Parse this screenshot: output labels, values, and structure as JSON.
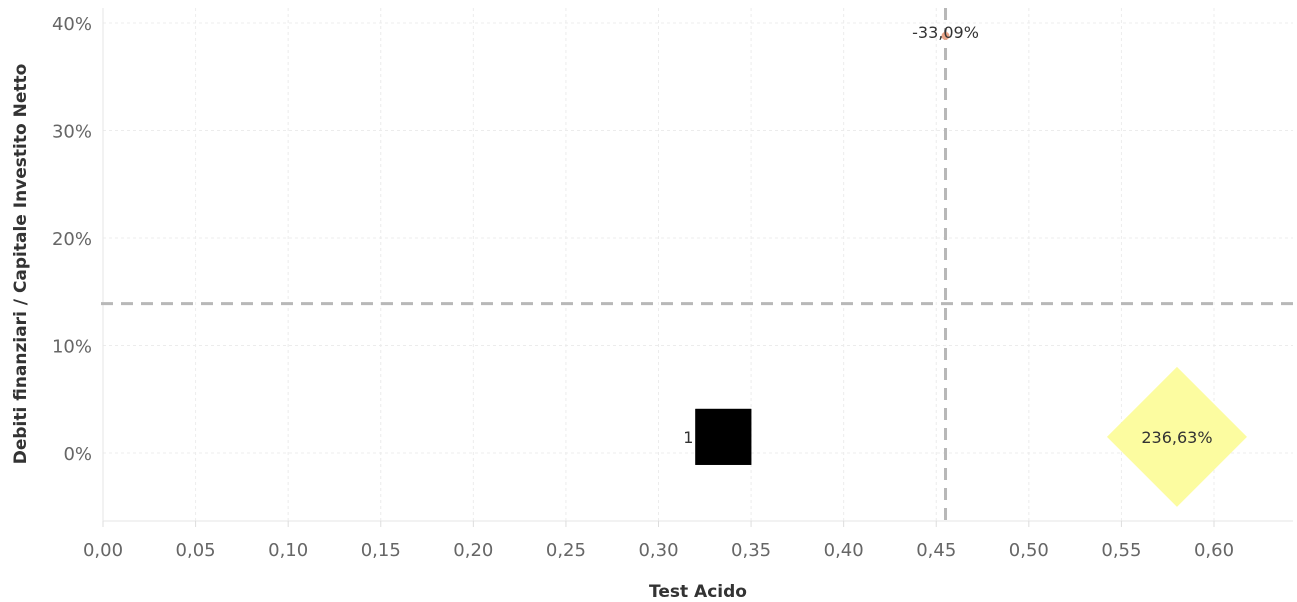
{
  "chart_data": {
    "type": "scatter",
    "xlabel": "Test Acido",
    "ylabel": "Debiti finanziari / Capitale Investito Netto",
    "xlim": [
      0,
      0.645
    ],
    "ylim": [
      -6.2,
      41.8
    ],
    "x_ticks": [
      "0,00",
      "0,05",
      "0,10",
      "0,15",
      "0,20",
      "0,25",
      "0,30",
      "0,35",
      "0,40",
      "0,45",
      "0,50",
      "0,55",
      "0,60"
    ],
    "x_tick_values": [
      0,
      0.05,
      0.1,
      0.15,
      0.2,
      0.25,
      0.3,
      0.35,
      0.4,
      0.45,
      0.5,
      0.55,
      0.6
    ],
    "y_ticks": [
      "0%",
      "10%",
      "20%",
      "30%",
      "40%"
    ],
    "y_tick_values": [
      0,
      10,
      20,
      30,
      40
    ],
    "grid": true,
    "reference_lines": {
      "x": 0.455,
      "y": 13.9
    },
    "points": [
      {
        "x": 0.455,
        "y": 38.8,
        "label": "-33,09%",
        "shape": "circle",
        "color": "#e8a488",
        "size": "small"
      },
      {
        "x": 0.335,
        "y": 1.5,
        "label": "1",
        "shape": "square",
        "color": "#000000",
        "size": "medium"
      },
      {
        "x": 0.58,
        "y": 1.5,
        "label": "236,63%",
        "shape": "diamond",
        "color": "#fcfca0",
        "size": "large"
      }
    ]
  }
}
